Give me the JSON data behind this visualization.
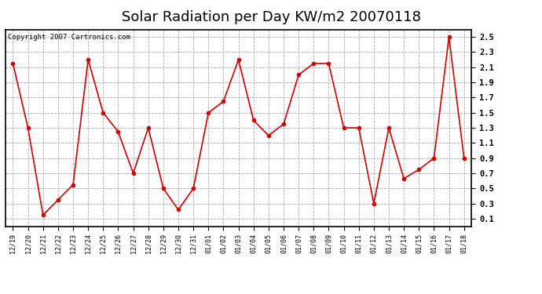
{
  "title": "Solar Radiation per Day KW/m2 20070118",
  "copyright_text": "Copyright 2007 Cartronics.com",
  "labels": [
    "12/19",
    "12/20",
    "12/21",
    "12/22",
    "12/23",
    "12/24",
    "12/25",
    "12/26",
    "12/27",
    "12/28",
    "12/29",
    "12/30",
    "12/31",
    "01/01",
    "01/02",
    "01/03",
    "01/04",
    "01/05",
    "01/06",
    "01/07",
    "01/08",
    "01/09",
    "01/10",
    "01/11",
    "01/12",
    "01/13",
    "01/14",
    "01/15",
    "01/16",
    "01/17",
    "01/18"
  ],
  "values": [
    2.15,
    1.3,
    0.15,
    0.35,
    0.55,
    2.2,
    1.5,
    1.25,
    0.7,
    1.3,
    0.5,
    0.22,
    0.5,
    1.5,
    1.65,
    2.2,
    1.4,
    1.2,
    1.35,
    2.0,
    2.15,
    2.15,
    1.3,
    1.3,
    0.3,
    1.3,
    0.63,
    0.75,
    0.9,
    2.5,
    0.9
  ],
  "line_color": "#cc0000",
  "marker": "o",
  "markersize": 3,
  "background_color": "#ffffff",
  "plot_bg_color": "#ffffff",
  "grid_color": "#aaaaaa",
  "ylim": [
    0.0,
    2.6
  ],
  "yticks": [
    0.1,
    0.3,
    0.5,
    0.7,
    0.9,
    1.1,
    1.3,
    1.5,
    1.7,
    1.9,
    2.1,
    2.3,
    2.5
  ],
  "title_fontsize": 13,
  "copyright_fontsize": 6.5,
  "tick_fontsize": 7.5,
  "xtick_fontsize": 6
}
